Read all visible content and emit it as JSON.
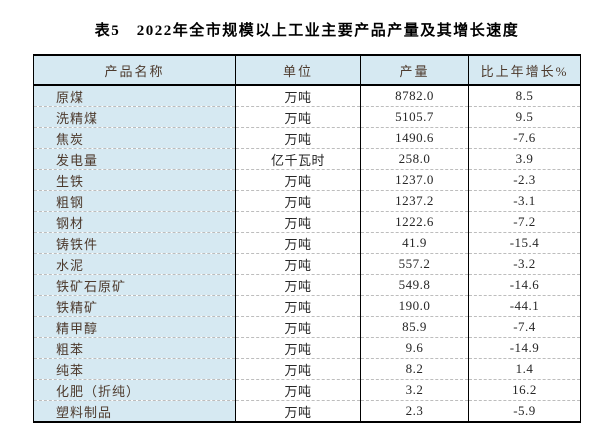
{
  "title": "表5　2022年全市规模以上工业主要产品产量及其增长速度",
  "colors": {
    "header_bg": "#d6e9f2",
    "first_col_bg": "#d6e9f2",
    "header_text": "#4d3a2d",
    "data_text": "#262626",
    "border": "#000000",
    "row_divider": "#bdbdbd"
  },
  "table": {
    "columns": [
      "产品名称",
      "单位",
      "产量",
      "比上年增长%"
    ],
    "rows": [
      [
        "原煤",
        "万吨",
        "8782.0",
        "8.5"
      ],
      [
        "洗精煤",
        "万吨",
        "5105.7",
        "9.5"
      ],
      [
        "焦炭",
        "万吨",
        "1490.6",
        "-7.6"
      ],
      [
        "发电量",
        "亿千瓦时",
        "258.0",
        "3.9"
      ],
      [
        "生铁",
        "万吨",
        "1237.0",
        "-2.3"
      ],
      [
        "粗钢",
        "万吨",
        "1237.2",
        "-3.1"
      ],
      [
        "钢材",
        "万吨",
        "1222.6",
        "-7.2"
      ],
      [
        "铸铁件",
        "万吨",
        "41.9",
        "-15.4"
      ],
      [
        "水泥",
        "万吨",
        "557.2",
        "-3.2"
      ],
      [
        "铁矿石原矿",
        "万吨",
        "549.8",
        "-14.6"
      ],
      [
        "铁精矿",
        "万吨",
        "190.0",
        "-44.1"
      ],
      [
        "精甲醇",
        "万吨",
        "85.9",
        "-7.4"
      ],
      [
        "粗苯",
        "万吨",
        "9.6",
        "-14.9"
      ],
      [
        "纯苯",
        "万吨",
        "8.2",
        "1.4"
      ],
      [
        "化肥（折纯）",
        "万吨",
        "3.2",
        "16.2"
      ],
      [
        "塑料制品",
        "万吨",
        "2.3",
        "-5.9"
      ]
    ]
  }
}
